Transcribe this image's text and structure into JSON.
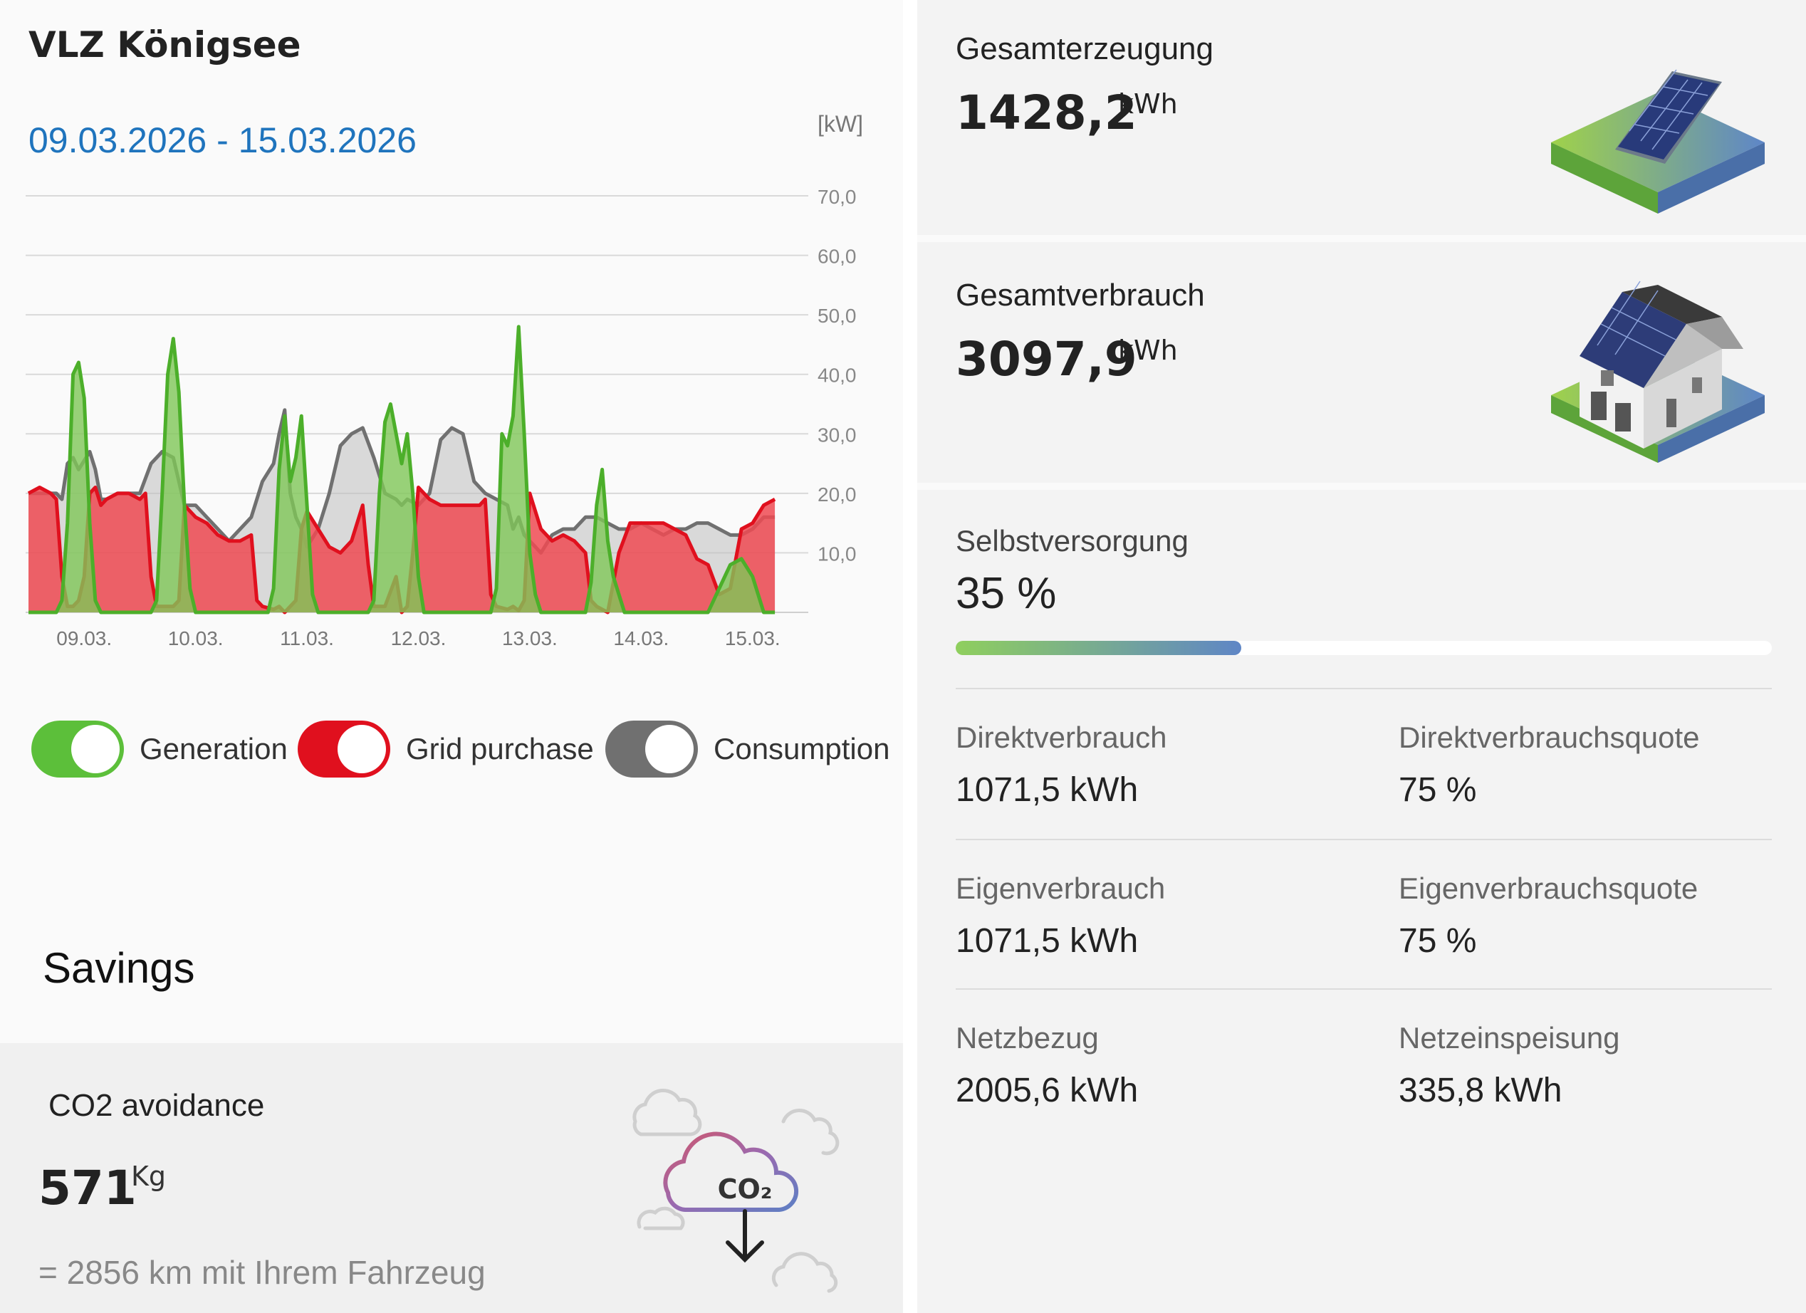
{
  "site": {
    "title": "VLZ Königsee"
  },
  "chart": {
    "date_range": "09.03.2026 - 15.03.2026",
    "unit": "[kW]"
  },
  "legend": [
    {
      "label": "Generation",
      "color": "#5cbf3a"
    },
    {
      "label": "Grid purchase",
      "color": "#e0101e"
    },
    {
      "label": "Consumption",
      "color": "#707070"
    }
  ],
  "savings": {
    "title": "Savings",
    "co2": {
      "title": "CO2 avoidance",
      "value": "571",
      "unit": "Kg",
      "equivalent": "= 2856 km mit Ihrem Fahrzeug",
      "icon": "co2-cloud-icon",
      "icon_text": "CO₂"
    }
  },
  "generation": {
    "title": "Gesamterzeugung",
    "value": "1428,2",
    "unit": "kWh",
    "icon": "solar-panel-icon"
  },
  "consumption": {
    "title": "Gesamtverbrauch",
    "value": "3097,9",
    "unit": "kWh",
    "icon": "house-icon"
  },
  "self_supply": {
    "label": "Selbstversorgung",
    "value": "35 %",
    "percent": 35,
    "colors": {
      "start": "#8fcf5d",
      "end": "#5f86c6"
    }
  },
  "stats": [
    {
      "label": "Direktverbrauch",
      "value": "1071,5 kWh"
    },
    {
      "label": "Direktverbrauchsquote",
      "value": "75 %"
    },
    {
      "label": "Eigenverbrauch",
      "value": "1071,5 kWh"
    },
    {
      "label": "Eigenverbrauchsquote",
      "value": "75 %"
    },
    {
      "label": "Netzbezug",
      "value": "2005,6 kWh"
    },
    {
      "label": "Netzeinspeisung",
      "value": "335,8 kWh"
    }
  ],
  "chart_data": {
    "type": "area",
    "title": "",
    "xlabel": "",
    "ylabel": "[kW]",
    "ylim": [
      0,
      70
    ],
    "y_ticks": [
      "70,0",
      "60,0",
      "50,0",
      "40,0",
      "30,0",
      "20,0",
      "10,0"
    ],
    "x_ticks": [
      "09.03.",
      "10.03.",
      "11.03.",
      "12.03.",
      "13.03.",
      "14.03.",
      "15.03."
    ],
    "x_range": [
      0,
      7
    ],
    "legend_position": "bottom",
    "series": [
      {
        "name": "Consumption",
        "color": "#777777",
        "x": [
          0,
          0.25,
          0.3,
          0.35,
          0.4,
          0.45,
          0.55,
          0.6,
          0.65,
          0.7,
          0.8,
          0.9,
          1.0,
          1.1,
          1.2,
          1.3,
          1.4,
          1.5,
          1.6,
          1.7,
          1.8,
          1.9,
          2.0,
          2.1,
          2.2,
          2.25,
          2.3,
          2.35,
          2.4,
          2.45,
          2.5,
          2.6,
          2.7,
          2.8,
          2.9,
          3.0,
          3.1,
          3.2,
          3.3,
          3.35,
          3.4,
          3.5,
          3.6,
          3.7,
          3.8,
          3.9,
          4.0,
          4.1,
          4.2,
          4.3,
          4.35,
          4.4,
          4.45,
          4.5,
          4.55,
          4.6,
          4.7,
          4.8,
          4.9,
          5.0,
          5.1,
          5.2,
          5.3,
          5.4,
          5.5,
          5.6,
          5.7,
          5.8,
          5.9,
          6.0,
          6.1,
          6.2,
          6.3,
          6.4,
          6.5,
          6.6,
          6.7
        ],
        "y": [
          20,
          20,
          19,
          25,
          26,
          24,
          27,
          24,
          19,
          19,
          20,
          20,
          20,
          25,
          27,
          26,
          18,
          18,
          16,
          14,
          12,
          14,
          16,
          22,
          25,
          30,
          34,
          20,
          16,
          14,
          11,
          14,
          20,
          28,
          30,
          31,
          26,
          20,
          19,
          18,
          19,
          18,
          20,
          29,
          31,
          30,
          22,
          20,
          19,
          18,
          14,
          16,
          13,
          12,
          11,
          10,
          13,
          14,
          14,
          16,
          16,
          15,
          14,
          14,
          15,
          14,
          13,
          14,
          14,
          15,
          15,
          14,
          13,
          13,
          14,
          16,
          16
        ]
      },
      {
        "name": "Grid purchase",
        "color": "#e0101e",
        "x": [
          0,
          0.1,
          0.2,
          0.25,
          0.3,
          0.35,
          0.4,
          0.45,
          0.5,
          0.55,
          0.6,
          0.65,
          0.7,
          0.8,
          0.9,
          1.0,
          1.05,
          1.1,
          1.15,
          1.2,
          1.3,
          1.35,
          1.4,
          1.5,
          1.6,
          1.7,
          1.8,
          1.9,
          2.0,
          2.05,
          2.1,
          2.2,
          2.25,
          2.3,
          2.35,
          2.4,
          2.45,
          2.5,
          2.6,
          2.7,
          2.8,
          2.9,
          3.0,
          3.05,
          3.1,
          3.15,
          3.2,
          3.3,
          3.35,
          3.4,
          3.45,
          3.5,
          3.6,
          3.7,
          3.8,
          3.9,
          4.0,
          4.05,
          4.1,
          4.15,
          4.2,
          4.3,
          4.35,
          4.4,
          4.45,
          4.5,
          4.6,
          4.7,
          4.8,
          4.9,
          5.0,
          5.05,
          5.1,
          5.2,
          5.3,
          5.4,
          5.5,
          5.6,
          5.7,
          5.8,
          5.9,
          6.0,
          6.1,
          6.2,
          6.3,
          6.4,
          6.5,
          6.6,
          6.7
        ],
        "y": [
          20,
          21,
          20,
          19,
          6,
          1,
          1,
          2,
          6,
          20,
          21,
          18,
          19,
          20,
          20,
          19,
          20,
          6,
          1,
          1,
          1,
          2,
          18,
          16,
          15,
          13,
          12,
          12,
          13,
          2,
          1,
          0.5,
          1,
          0,
          1,
          2,
          14,
          17,
          14,
          11,
          10,
          12,
          18,
          8,
          1,
          1,
          1,
          6,
          0,
          1,
          10,
          21,
          19,
          18,
          18,
          18,
          18,
          18,
          19,
          3,
          1,
          0.5,
          1,
          0.3,
          2,
          20,
          14,
          12,
          13,
          12,
          10,
          2,
          1,
          0,
          10,
          15,
          15,
          15,
          15,
          14,
          13,
          9,
          8,
          3,
          4,
          14,
          15,
          18,
          19
        ]
      },
      {
        "name": "Generation",
        "color": "#5cbf3a",
        "x": [
          0,
          0.25,
          0.3,
          0.35,
          0.4,
          0.45,
          0.5,
          0.55,
          0.6,
          0.65,
          0.7,
          1.1,
          1.15,
          1.2,
          1.25,
          1.3,
          1.35,
          1.4,
          1.45,
          1.5,
          2.15,
          2.2,
          2.25,
          2.3,
          2.35,
          2.4,
          2.45,
          2.5,
          2.55,
          2.6,
          2.7,
          3.05,
          3.1,
          3.15,
          3.2,
          3.25,
          3.3,
          3.35,
          3.4,
          3.45,
          3.5,
          3.55,
          4.15,
          4.2,
          4.25,
          4.3,
          4.35,
          4.4,
          4.45,
          4.5,
          4.55,
          4.6,
          4.7,
          4.8,
          4.9,
          5.0,
          5.05,
          5.1,
          5.15,
          5.2,
          5.25,
          5.3,
          5.35,
          5.4,
          5.5,
          5.6,
          5.7,
          5.8,
          5.9,
          6.0,
          6.1,
          6.2,
          6.3,
          6.4,
          6.5,
          6.6,
          6.7
        ],
        "y": [
          0,
          0,
          2,
          15,
          40,
          42,
          36,
          15,
          2,
          0,
          0,
          0,
          2,
          20,
          40,
          46,
          37,
          18,
          4,
          0,
          0,
          4,
          24,
          33,
          22,
          26,
          33,
          18,
          3,
          0,
          0,
          0,
          2,
          20,
          32,
          35,
          30,
          25,
          30,
          20,
          6,
          0,
          0,
          4,
          30,
          28,
          33,
          48,
          30,
          10,
          3,
          0,
          0,
          0,
          0,
          0,
          5,
          18,
          24,
          12,
          6,
          3,
          0,
          0,
          0,
          0,
          0,
          0,
          0,
          0,
          0,
          4,
          8,
          9,
          6,
          0,
          0
        ]
      }
    ]
  }
}
